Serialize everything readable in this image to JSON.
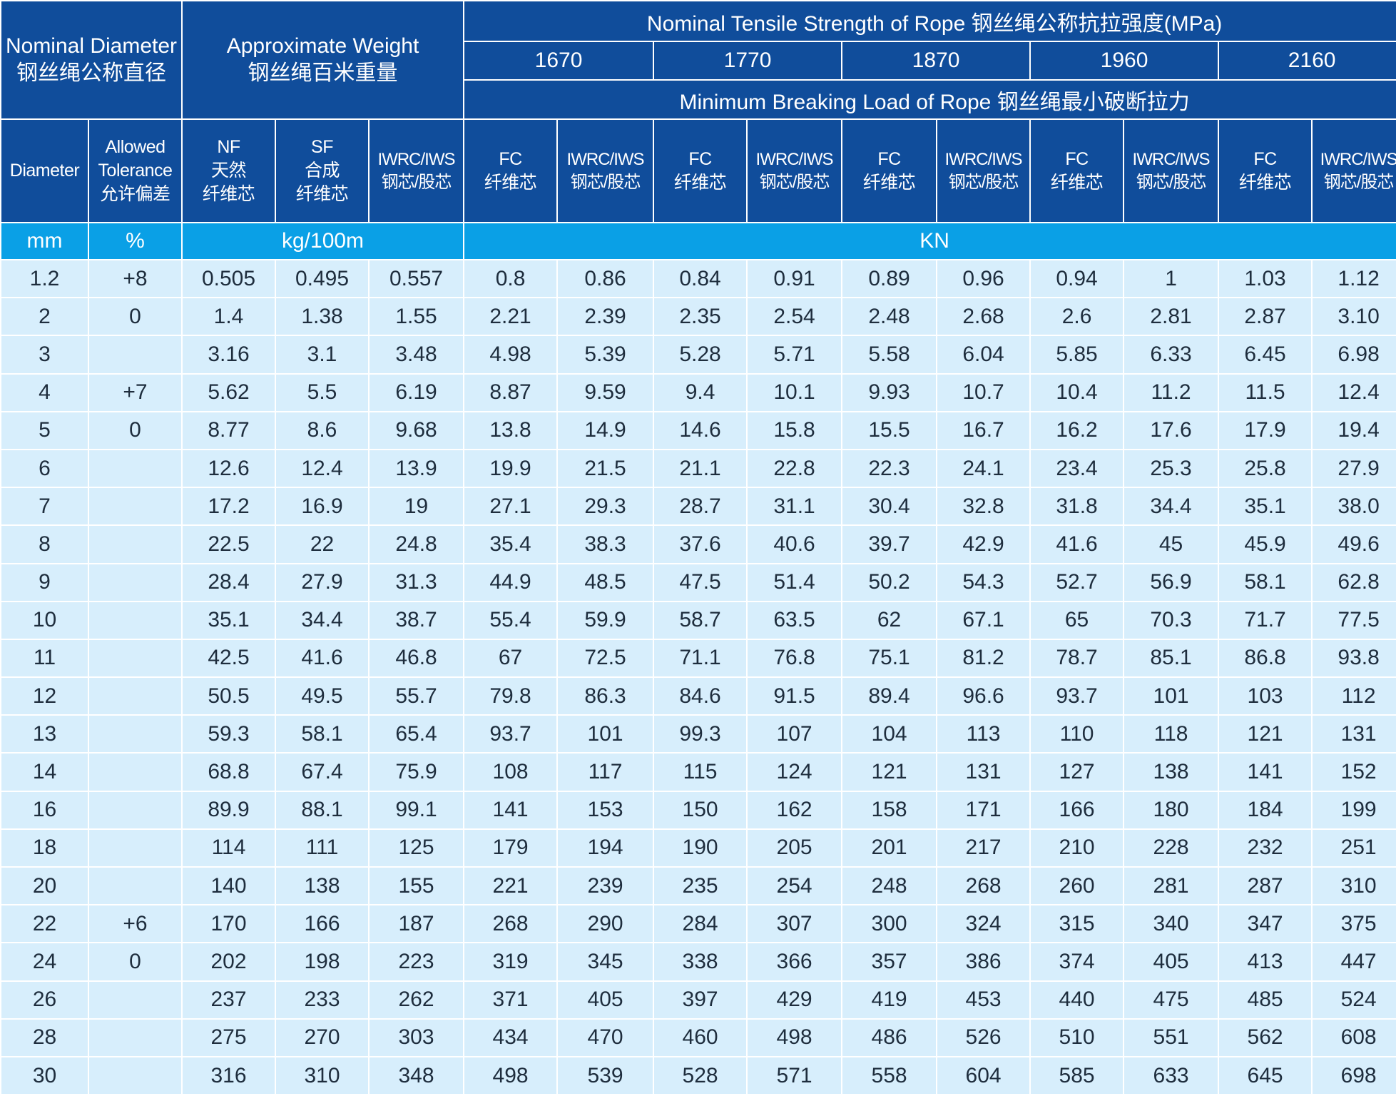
{
  "header": {
    "nominal_diameter_en": "Nominal Diameter",
    "nominal_diameter_cn": "钢丝绳公称直径",
    "approx_weight_en": "Approximate Weight",
    "approx_weight_cn": "钢丝绳百米重量",
    "tensile_title": "Nominal Tensile Strength of Rope 钢丝绳公称抗拉强度(MPa)",
    "grades": [
      "1670",
      "1770",
      "1870",
      "1960",
      "2160"
    ],
    "breaking_title": "Minimum Breaking Load of Rope 钢丝绳最小破断拉力",
    "diameter": "Diameter",
    "tolerance": [
      "Allowed",
      "Tolerance",
      "允许偏差"
    ],
    "nf": [
      "NF",
      "天然",
      "纤维芯"
    ],
    "sf": [
      "SF",
      "合成",
      "纤维芯"
    ],
    "iwrc_w": [
      "IWRC/IWS",
      "钢芯/股芯"
    ],
    "fc": [
      "FC",
      "纤维芯"
    ],
    "iwrc": [
      "IWRC/IWS",
      "钢芯/股芯"
    ]
  },
  "units": {
    "mm": "mm",
    "percent": "%",
    "weight": "kg/100m",
    "load": "KN"
  },
  "rows": [
    {
      "d": "1.2",
      "tol": "+8",
      "v": [
        "0.505",
        "0.495",
        "0.557",
        "0.8",
        "0.86",
        "0.84",
        "0.91",
        "0.89",
        "0.96",
        "0.94",
        "1",
        "1.03",
        "1.12"
      ]
    },
    {
      "d": "2",
      "tol": "0",
      "v": [
        "1.4",
        "1.38",
        "1.55",
        "2.21",
        "2.39",
        "2.35",
        "2.54",
        "2.48",
        "2.68",
        "2.6",
        "2.81",
        "2.87",
        "3.10"
      ]
    },
    {
      "d": "3",
      "tol": "",
      "v": [
        "3.16",
        "3.1",
        "3.48",
        "4.98",
        "5.39",
        "5.28",
        "5.71",
        "5.58",
        "6.04",
        "5.85",
        "6.33",
        "6.45",
        "6.98"
      ]
    },
    {
      "d": "4",
      "tol": "+7",
      "v": [
        "5.62",
        "5.5",
        "6.19",
        "8.87",
        "9.59",
        "9.4",
        "10.1",
        "9.93",
        "10.7",
        "10.4",
        "11.2",
        "11.5",
        "12.4"
      ]
    },
    {
      "d": "5",
      "tol": "0",
      "v": [
        "8.77",
        "8.6",
        "9.68",
        "13.8",
        "14.9",
        "14.6",
        "15.8",
        "15.5",
        "16.7",
        "16.2",
        "17.6",
        "17.9",
        "19.4"
      ]
    },
    {
      "d": "6",
      "tol": "",
      "v": [
        "12.6",
        "12.4",
        "13.9",
        "19.9",
        "21.5",
        "21.1",
        "22.8",
        "22.3",
        "24.1",
        "23.4",
        "25.3",
        "25.8",
        "27.9"
      ]
    },
    {
      "d": "7",
      "tol": "",
      "v": [
        "17.2",
        "16.9",
        "19",
        "27.1",
        "29.3",
        "28.7",
        "31.1",
        "30.4",
        "32.8",
        "31.8",
        "34.4",
        "35.1",
        "38.0"
      ]
    },
    {
      "d": "8",
      "tol": "",
      "v": [
        "22.5",
        "22",
        "24.8",
        "35.4",
        "38.3",
        "37.6",
        "40.6",
        "39.7",
        "42.9",
        "41.6",
        "45",
        "45.9",
        "49.6"
      ]
    },
    {
      "d": "9",
      "tol": "",
      "v": [
        "28.4",
        "27.9",
        "31.3",
        "44.9",
        "48.5",
        "47.5",
        "51.4",
        "50.2",
        "54.3",
        "52.7",
        "56.9",
        "58.1",
        "62.8"
      ]
    },
    {
      "d": "10",
      "tol": "",
      "v": [
        "35.1",
        "34.4",
        "38.7",
        "55.4",
        "59.9",
        "58.7",
        "63.5",
        "62",
        "67.1",
        "65",
        "70.3",
        "71.7",
        "77.5"
      ]
    },
    {
      "d": "11",
      "tol": "",
      "v": [
        "42.5",
        "41.6",
        "46.8",
        "67",
        "72.5",
        "71.1",
        "76.8",
        "75.1",
        "81.2",
        "78.7",
        "85.1",
        "86.8",
        "93.8"
      ]
    },
    {
      "d": "12",
      "tol": "",
      "v": [
        "50.5",
        "49.5",
        "55.7",
        "79.8",
        "86.3",
        "84.6",
        "91.5",
        "89.4",
        "96.6",
        "93.7",
        "101",
        "103",
        "112"
      ]
    },
    {
      "d": "13",
      "tol": "",
      "v": [
        "59.3",
        "58.1",
        "65.4",
        "93.7",
        "101",
        "99.3",
        "107",
        "104",
        "113",
        "110",
        "118",
        "121",
        "131"
      ]
    },
    {
      "d": "14",
      "tol": "",
      "v": [
        "68.8",
        "67.4",
        "75.9",
        "108",
        "117",
        "115",
        "124",
        "121",
        "131",
        "127",
        "138",
        "141",
        "152"
      ]
    },
    {
      "d": "16",
      "tol": "",
      "v": [
        "89.9",
        "88.1",
        "99.1",
        "141",
        "153",
        "150",
        "162",
        "158",
        "171",
        "166",
        "180",
        "184",
        "199"
      ]
    },
    {
      "d": "18",
      "tol": "",
      "v": [
        "114",
        "111",
        "125",
        "179",
        "194",
        "190",
        "205",
        "201",
        "217",
        "210",
        "228",
        "232",
        "251"
      ]
    },
    {
      "d": "20",
      "tol": "",
      "v": [
        "140",
        "138",
        "155",
        "221",
        "239",
        "235",
        "254",
        "248",
        "268",
        "260",
        "281",
        "287",
        "310"
      ]
    },
    {
      "d": "22",
      "tol": "+6",
      "v": [
        "170",
        "166",
        "187",
        "268",
        "290",
        "284",
        "307",
        "300",
        "324",
        "315",
        "340",
        "347",
        "375"
      ]
    },
    {
      "d": "24",
      "tol": "0",
      "v": [
        "202",
        "198",
        "223",
        "319",
        "345",
        "338",
        "366",
        "357",
        "386",
        "374",
        "405",
        "413",
        "447"
      ]
    },
    {
      "d": "26",
      "tol": "",
      "v": [
        "237",
        "233",
        "262",
        "371",
        "405",
        "397",
        "429",
        "419",
        "453",
        "440",
        "475",
        "485",
        "524"
      ]
    },
    {
      "d": "28",
      "tol": "",
      "v": [
        "275",
        "270",
        "303",
        "434",
        "470",
        "460",
        "498",
        "486",
        "526",
        "510",
        "551",
        "562",
        "608"
      ]
    },
    {
      "d": "30",
      "tol": "",
      "v": [
        "316",
        "310",
        "348",
        "498",
        "539",
        "528",
        "571",
        "558",
        "604",
        "585",
        "633",
        "645",
        "698"
      ]
    }
  ]
}
